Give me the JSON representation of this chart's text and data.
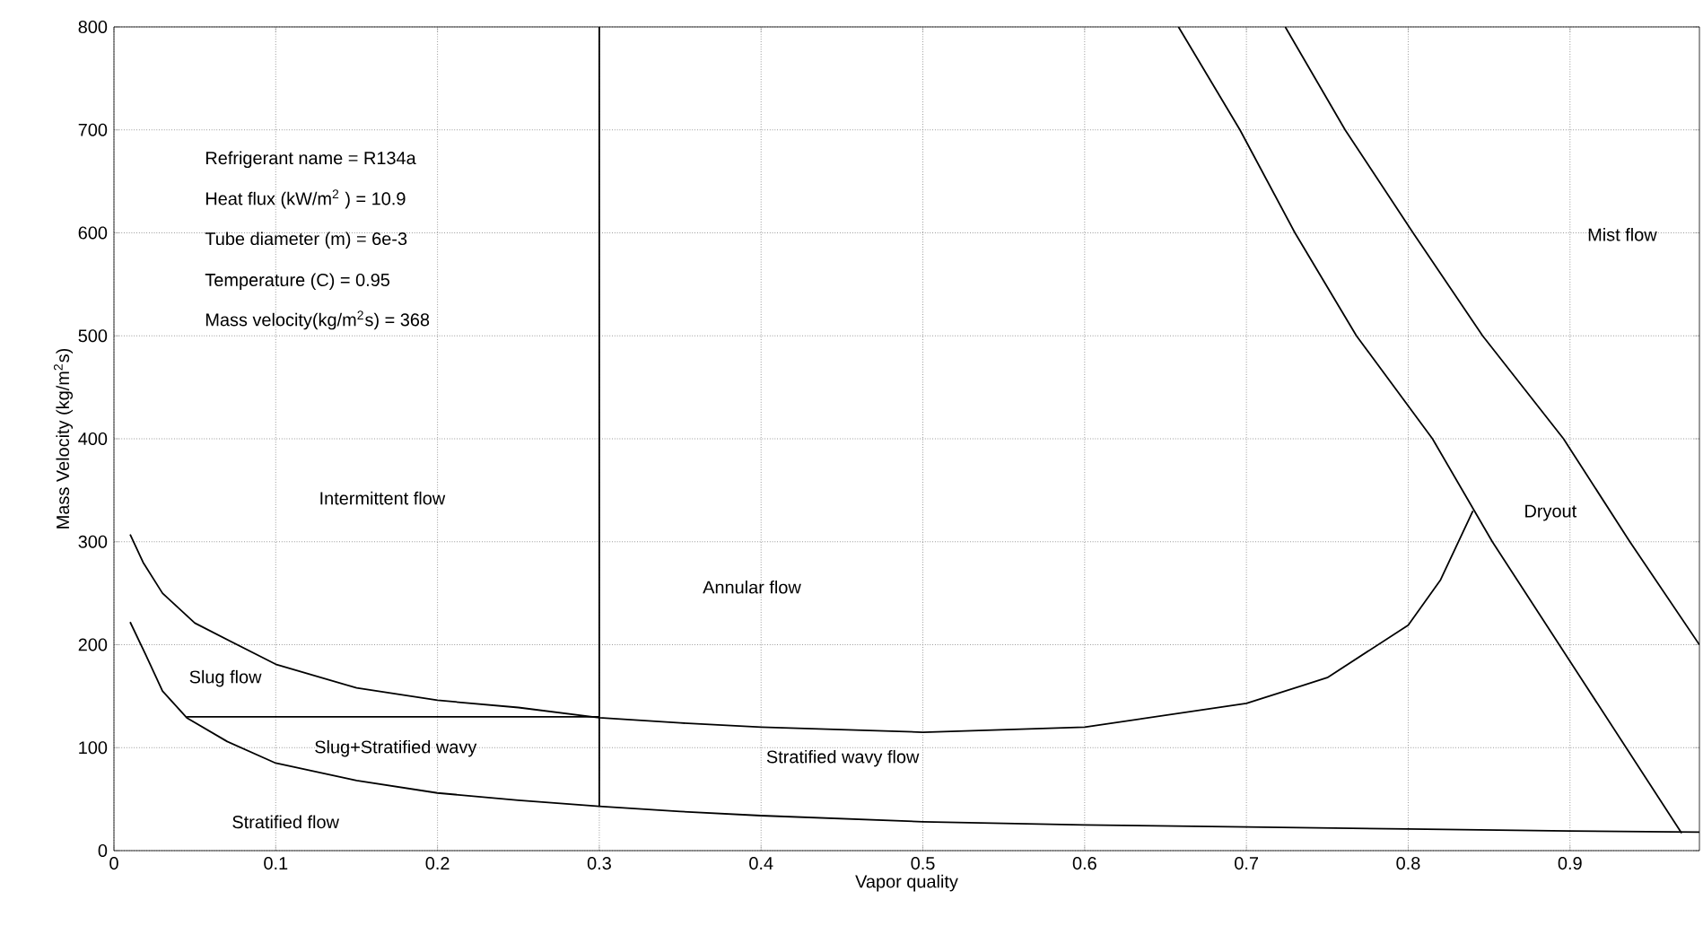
{
  "chart_data": {
    "type": "line",
    "xlabel": "Vapor quality",
    "ylabel": "Mass Velocity (kg/m$^{2}$s)",
    "xlim": [
      0,
      0.98
    ],
    "ylim": [
      0,
      800
    ],
    "xticks": [
      0,
      0.1,
      0.2,
      0.3,
      0.4,
      0.5,
      0.6,
      0.7,
      0.8,
      0.9
    ],
    "yticks": [
      0,
      100,
      200,
      300,
      400,
      500,
      600,
      700,
      800
    ],
    "grid": true,
    "marker": "none",
    "line_style": "solid",
    "series": [
      {
        "color": "#000000",
        "x": [
          0.01,
          0.018,
          0.03,
          0.05,
          0.1,
          0.15,
          0.2,
          0.25,
          0.3,
          0.35,
          0.4,
          0.5,
          0.6,
          0.7,
          0.75,
          0.8,
          0.82,
          0.84
        ],
        "values": [
          307,
          280,
          250,
          221,
          181,
          158,
          146,
          139,
          129,
          124,
          120,
          115,
          120,
          143,
          168,
          219,
          263,
          330
        ]
      },
      {
        "color": "#000000",
        "x": [
          0.01,
          0.02,
          0.03,
          0.045,
          0.07,
          0.1,
          0.15,
          0.2,
          0.25,
          0.3,
          0.35,
          0.4,
          0.5,
          0.6,
          0.7,
          0.8,
          0.9,
          0.98
        ],
        "values": [
          222,
          189,
          155,
          129,
          106,
          85,
          68,
          56,
          49,
          43,
          38,
          34,
          28,
          25,
          23,
          21,
          19,
          18
        ]
      },
      {
        "color": "#000000",
        "x": [
          0.045,
          0.3
        ],
        "values": [
          130,
          130
        ]
      },
      {
        "color": "#000000",
        "x": [
          0.3,
          0.3
        ],
        "values": [
          43,
          800
        ]
      },
      {
        "color": "#000000",
        "x": [
          0.658,
          0.696,
          0.73,
          0.768,
          0.815,
          0.852,
          0.969
        ],
        "values": [
          800,
          700,
          600,
          500,
          400,
          300,
          17
        ]
      },
      {
        "color": "#000000",
        "x": [
          0.724,
          0.761,
          0.803,
          0.846,
          0.896,
          0.937,
          0.98
        ],
        "values": [
          800,
          700,
          600,
          500,
          400,
          300,
          200
        ]
      }
    ],
    "annotations": [
      "Intermittent flow",
      "Annular flow",
      "Slug flow",
      "Slug+Stratified wavy",
      "Stratified flow",
      "Stratified wavy flow",
      "Dryout",
      "Mist flow",
      "Refrigerant name = R134a",
      "Heat flux (kW/m$^{2}$ ) = 10.9",
      "Tube diameter (m) = 6e-3",
      "Temperature (C) = 0.95",
      "Mass velocity(kg/m$^{2}$s) = 368"
    ]
  }
}
